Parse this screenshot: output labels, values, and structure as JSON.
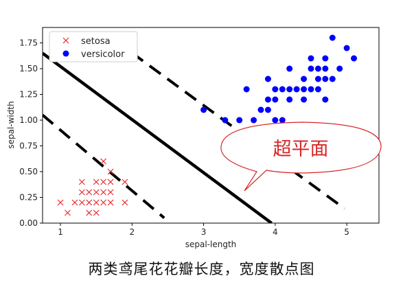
{
  "chart_data": {
    "type": "scatter",
    "xlabel": "sepal-length",
    "ylabel": "sepal-width",
    "xlim": [
      0.75,
      5.45
    ],
    "ylim": [
      0,
      1.9
    ],
    "xticks": [
      "1",
      "2",
      "3",
      "4",
      "5"
    ],
    "yticks": [
      "0.00",
      "0.25",
      "0.50",
      "0.75",
      "1.00",
      "1.25",
      "1.50",
      "1.75"
    ],
    "legend_position": "top-left",
    "series": [
      {
        "name": "setosa",
        "marker": "x",
        "color": "#e8292a",
        "points": [
          [
            1.0,
            0.2
          ],
          [
            1.1,
            0.1
          ],
          [
            1.2,
            0.2
          ],
          [
            1.3,
            0.2
          ],
          [
            1.3,
            0.3
          ],
          [
            1.3,
            0.4
          ],
          [
            1.4,
            0.2
          ],
          [
            1.4,
            0.3
          ],
          [
            1.4,
            0.1
          ],
          [
            1.5,
            0.2
          ],
          [
            1.5,
            0.4
          ],
          [
            1.5,
            0.3
          ],
          [
            1.5,
            0.1
          ],
          [
            1.6,
            0.2
          ],
          [
            1.6,
            0.4
          ],
          [
            1.6,
            0.6
          ],
          [
            1.6,
            0.3
          ],
          [
            1.7,
            0.2
          ],
          [
            1.7,
            0.4
          ],
          [
            1.7,
            0.3
          ],
          [
            1.7,
            0.5
          ],
          [
            1.9,
            0.2
          ],
          [
            1.9,
            0.4
          ]
        ]
      },
      {
        "name": "versicolor",
        "marker": "o",
        "color": "#0000ff",
        "points": [
          [
            3.0,
            1.1
          ],
          [
            3.3,
            1.0
          ],
          [
            3.5,
            1.0
          ],
          [
            3.6,
            1.3
          ],
          [
            3.7,
            1.0
          ],
          [
            3.8,
            1.1
          ],
          [
            3.9,
            1.1
          ],
          [
            3.9,
            1.2
          ],
          [
            3.9,
            1.4
          ],
          [
            4.0,
            1.0
          ],
          [
            4.0,
            1.2
          ],
          [
            4.0,
            1.3
          ],
          [
            4.1,
            1.0
          ],
          [
            4.1,
            1.3
          ],
          [
            4.2,
            1.2
          ],
          [
            4.2,
            1.3
          ],
          [
            4.2,
            1.5
          ],
          [
            4.3,
            1.3
          ],
          [
            4.4,
            1.2
          ],
          [
            4.4,
            1.3
          ],
          [
            4.4,
            1.4
          ],
          [
            4.5,
            1.3
          ],
          [
            4.5,
            1.5
          ],
          [
            4.5,
            1.6
          ],
          [
            4.6,
            1.3
          ],
          [
            4.6,
            1.4
          ],
          [
            4.6,
            1.5
          ],
          [
            4.7,
            1.2
          ],
          [
            4.7,
            1.4
          ],
          [
            4.7,
            1.5
          ],
          [
            4.7,
            1.6
          ],
          [
            4.8,
            1.4
          ],
          [
            4.8,
            1.8
          ],
          [
            4.9,
            1.5
          ],
          [
            5.0,
            1.7
          ],
          [
            5.1,
            1.6
          ]
        ]
      }
    ],
    "lines": [
      {
        "name": "hyperplane",
        "style": "solid",
        "color": "#000000",
        "from": [
          0.75,
          1.65
        ],
        "to": [
          3.95,
          0.0
        ]
      },
      {
        "name": "margin-lower",
        "style": "dashed",
        "color": "#000000",
        "from": [
          0.75,
          1.05
        ],
        "to": [
          2.45,
          0.05
        ]
      },
      {
        "name": "margin-upper",
        "style": "dashed",
        "color": "#000000",
        "from": [
          1.75,
          1.78
        ],
        "to": [
          4.97,
          0.14
        ]
      }
    ],
    "annotation": {
      "text": "超平面",
      "color": "#d62728"
    }
  },
  "caption": "两类鸢尾花花瓣长度，宽度散点图"
}
